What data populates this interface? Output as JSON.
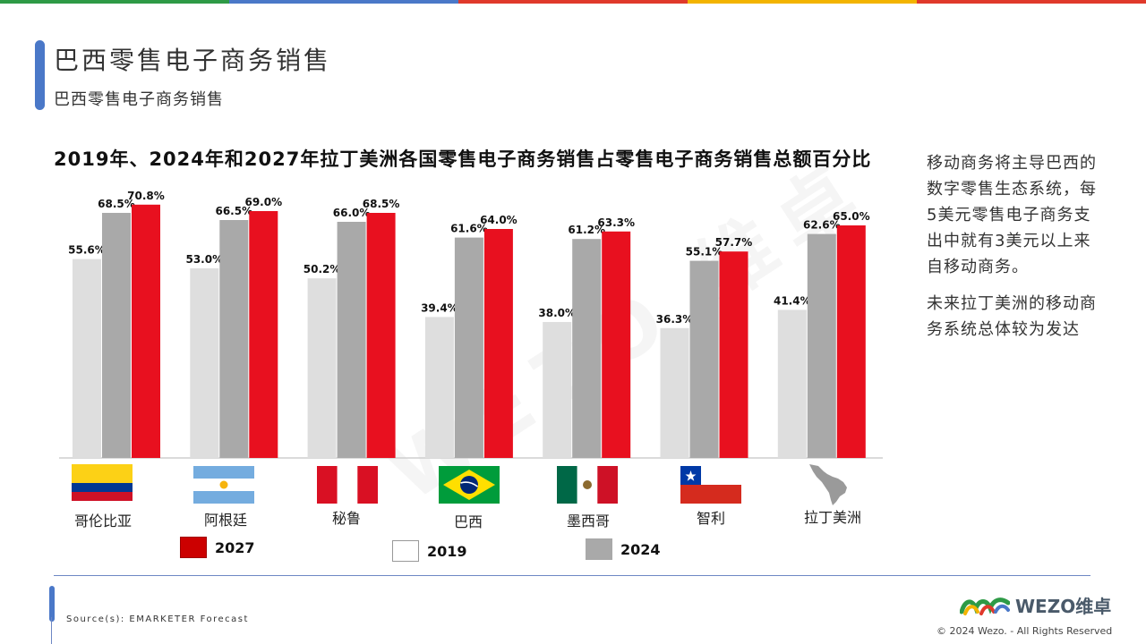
{
  "header": {
    "title": "巴西零售电子商务销售",
    "subtitle": "巴西零售电子商务销售"
  },
  "chart_data": {
    "type": "bar",
    "title": "2019年、2024年和2027年拉丁美洲各国零售电子商务销售占零售电子商务销售总额百分比",
    "categories": [
      "哥伦比亚",
      "阿根廷",
      "秘鲁",
      "巴西",
      "墨西哥",
      "智利",
      "拉丁美洲"
    ],
    "series": [
      {
        "name": "2019",
        "color": "#dedede",
        "values": [
          55.6,
          53.0,
          50.2,
          39.4,
          38.0,
          36.3,
          41.4
        ],
        "labels": [
          "55.6%",
          "53.0%",
          "50.2%",
          "39.4%",
          "38.0%",
          "36.3%",
          "41.4%"
        ]
      },
      {
        "name": "2024",
        "color": "#a9a9a9",
        "values": [
          68.5,
          66.5,
          66.0,
          61.6,
          61.2,
          55.1,
          62.6
        ],
        "labels": [
          "68.5%",
          "66.5%",
          "66.0%",
          "61.6%",
          "61.2%",
          "55.1%",
          "62.6%"
        ]
      },
      {
        "name": "2027",
        "color": "#e8101f",
        "values": [
          70.8,
          69.0,
          68.5,
          64.0,
          63.3,
          57.7,
          65.0
        ],
        "labels": [
          "70.8%",
          "69.0%",
          "68.5%",
          "64.0%",
          "63.3%",
          "57.7%",
          "65.0%"
        ]
      }
    ],
    "ylim": [
      0,
      100
    ],
    "grid": false,
    "legend_order": [
      "2027",
      "2019",
      "2024"
    ],
    "legend_placement": "bottom",
    "flags": [
      "colombia-flag-icon",
      "argentina-flag-icon",
      "peru-flag-icon",
      "brazil-flag-icon",
      "mexico-flag-icon",
      "chile-flag-icon",
      "latin-america-map-icon"
    ]
  },
  "sidebar_text": {
    "para1": "移动商务将主导巴西的数字零售生态系统，每5美元零售电子商务支出中就有3美元以上来自移动商务。",
    "para2": "未来拉丁美洲的移动商务系统总体较为发达"
  },
  "footer": {
    "source": "Source(s): EMARKETER Forecast",
    "logo_text": "WEZO维卓",
    "copyright": "© 2024 Wezo. - All Rights Reserved"
  },
  "watermark": "WEZO 维卓",
  "colors": {
    "accent": "#4a78c8",
    "topbar": [
      "#2e9a46",
      "#4a78c8",
      "#e0392b",
      "#f3b400",
      "#e0392b"
    ]
  }
}
